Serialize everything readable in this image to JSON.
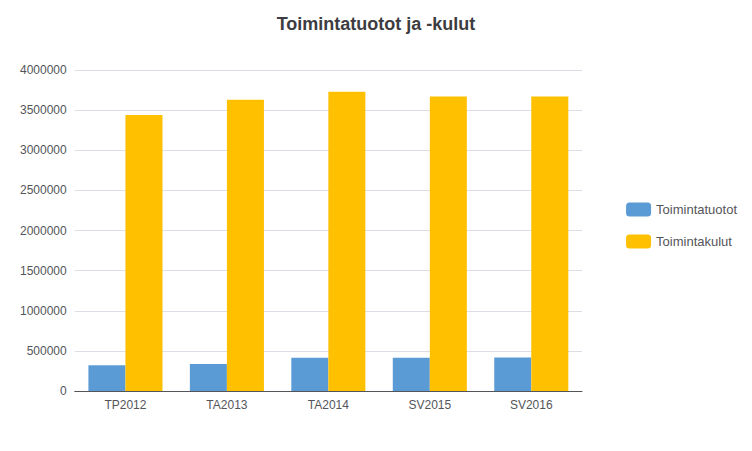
{
  "chart_data": {
    "type": "bar",
    "title": "Toimintatuotot ja -kulut",
    "categories": [
      "TP2012",
      "TA2013",
      "TA2014",
      "SV2015",
      "SV2016"
    ],
    "series": [
      {
        "name": "Toimintatuotot",
        "color": "#5B9BD5",
        "values": [
          320000,
          335000,
          415600,
          415000,
          416000
        ]
      },
      {
        "name": "Toimintakulut",
        "color": "#FFC000",
        "values": [
          3440000,
          3630000,
          3730000,
          3670000,
          3670000
        ]
      }
    ],
    "ylim": [
      0,
      4000000
    ],
    "yticks": [
      0,
      500000,
      1000000,
      1500000,
      2000000,
      2500000,
      3000000,
      3500000,
      4000000
    ],
    "grid": true,
    "legend": "right"
  }
}
